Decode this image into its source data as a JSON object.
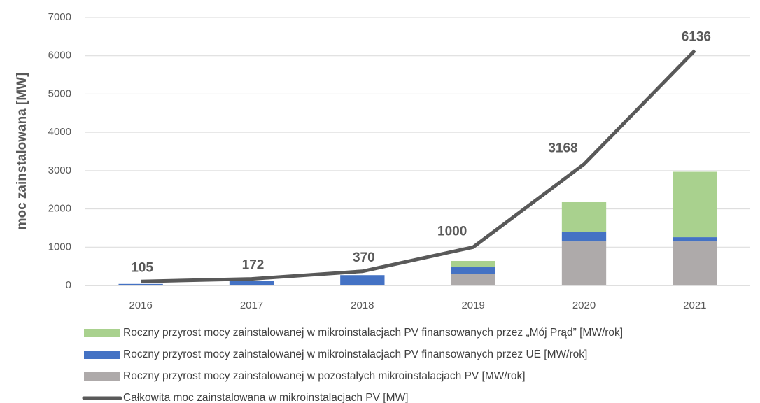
{
  "chart_data": {
    "type": "bar_line",
    "y_label": "moc zainstalowana [MW]",
    "categories": [
      "2016",
      "2017",
      "2018",
      "2019",
      "2020",
      "2021"
    ],
    "series": [
      {
        "name": "Roczny przyrost mocy zainstalowanej w mikroinstalacjach PV finansowanych przez „Mój Prąd” [MW/rok]",
        "type": "bar",
        "color": "#a9d18e",
        "values": [
          0,
          0,
          0,
          165,
          775,
          1710
        ]
      },
      {
        "name": "Roczny przyrost mocy zainstalowanej w mikroinstalacjach PV finansowanych przez UE [MW/rok]",
        "type": "bar",
        "color": "#4472c4",
        "values": [
          40,
          110,
          270,
          165,
          250,
          110
        ]
      },
      {
        "name": "Roczny przyrost mocy zainstalowanej w pozostałych mikroinstalacjach PV [MW/rok]",
        "type": "bar",
        "color": "#aeaaaa",
        "values": [
          0,
          0,
          0,
          310,
          1150,
          1150
        ]
      },
      {
        "name": "Całkowita moc zainstalowana w mikroinstalacjach PV [MW]",
        "type": "line",
        "color": "#595959",
        "values": [
          105,
          172,
          370,
          1000,
          3168,
          6136
        ],
        "data_labels": true
      }
    ],
    "ylim": [
      0,
      7000
    ],
    "yticks": [
      0,
      1000,
      2000,
      3000,
      4000,
      5000,
      6000,
      7000
    ],
    "grid": true,
    "legend": "bottom"
  }
}
